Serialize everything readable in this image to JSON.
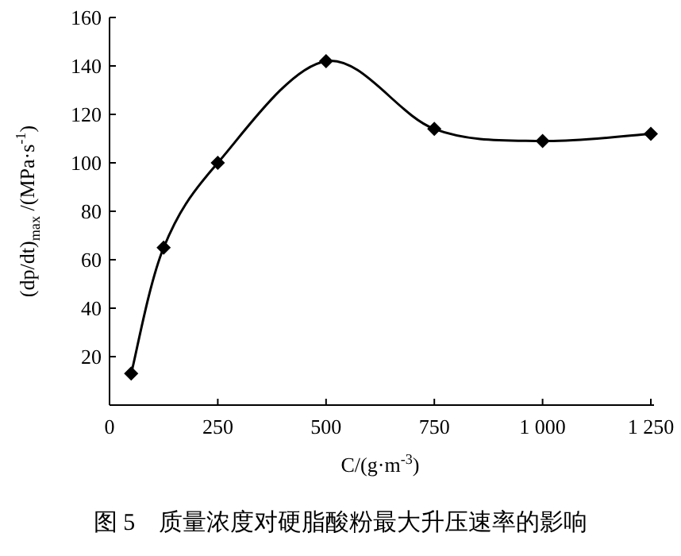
{
  "chart_data": {
    "type": "line",
    "title": "图 5　质量浓度对硬脂酸粉最大升压速率的影响",
    "xlabel": "C/(g·m$^{-3}$)",
    "ylabel": "(dp/dt)$_{max}$ /(MPa·s$^{-1}$)",
    "x": [
      50,
      125,
      250,
      500,
      750,
      1000,
      1250
    ],
    "series": [
      {
        "color": "#000000",
        "values": [
          13,
          65,
          100,
          142,
          114,
          109,
          112
        ]
      }
    ],
    "xlim": [
      0,
      1250
    ],
    "ylim": [
      0,
      160
    ],
    "xticks": [
      0,
      250,
      500,
      750,
      {
        "value": 1000,
        "label": "1 000"
      },
      {
        "value": 1250,
        "label": "1 250"
      }
    ],
    "yticks": [
      20,
      40,
      60,
      80,
      100,
      120,
      140,
      160
    ],
    "marker": "diamond",
    "line_style": "solid",
    "grid": false
  }
}
